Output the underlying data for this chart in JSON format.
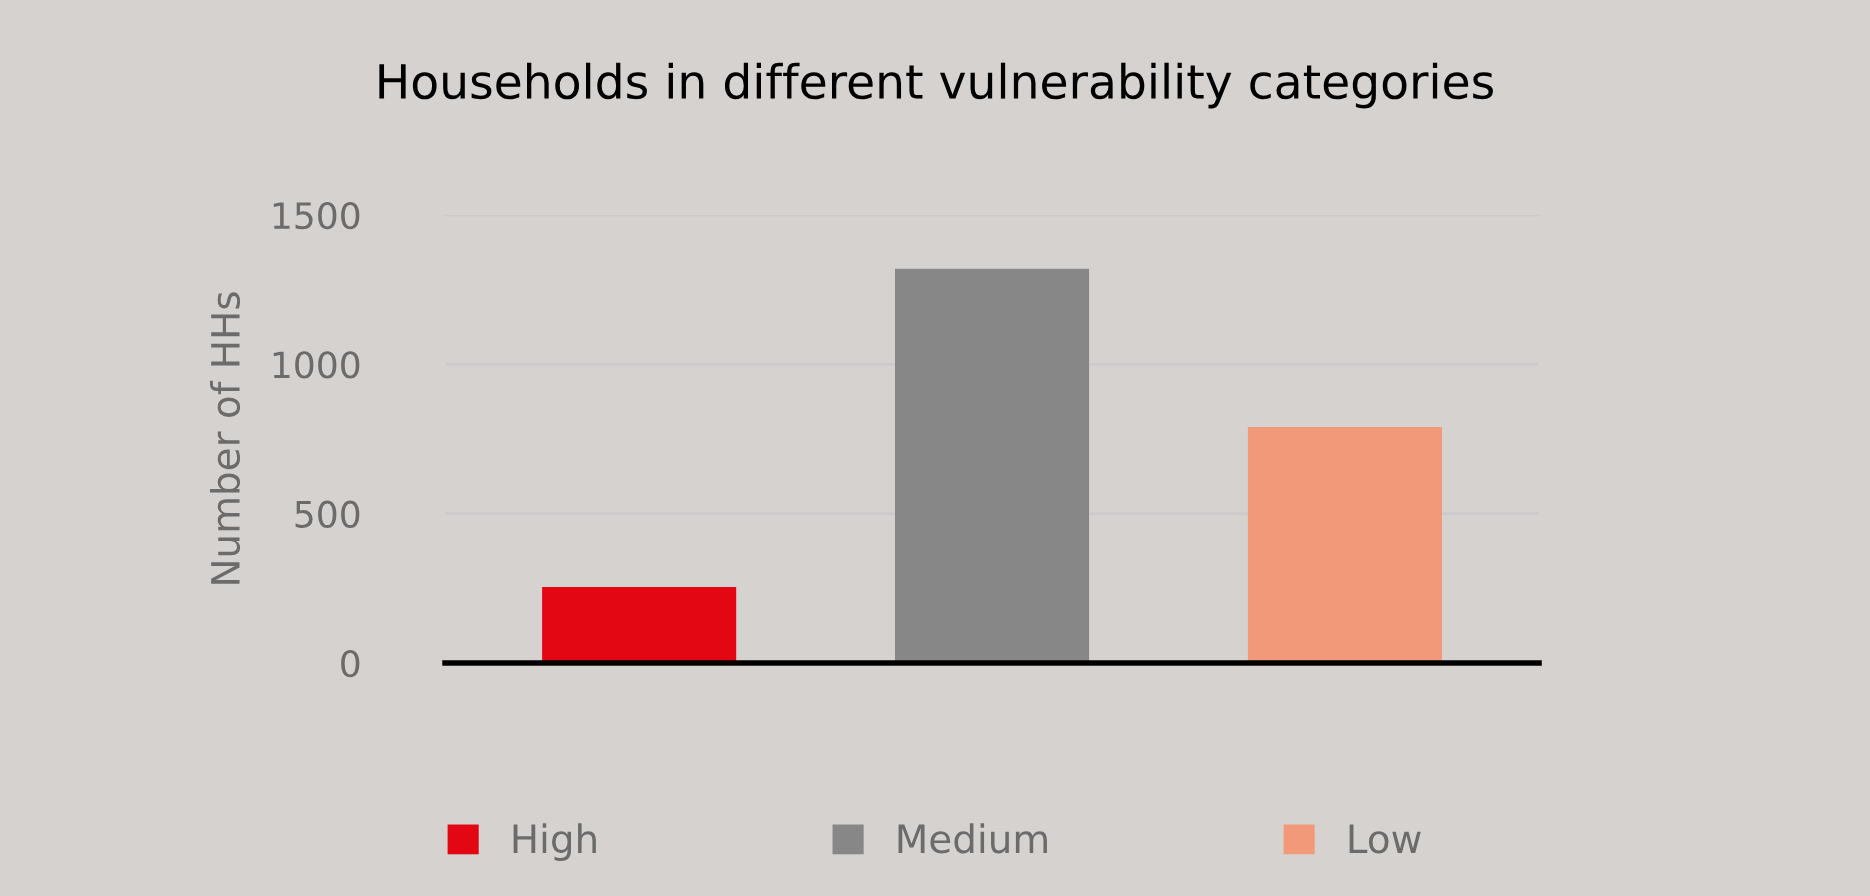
{
  "chart_data": {
    "type": "bar",
    "title": "Households in different vulnerability categories",
    "ylabel": "Number of HHs",
    "categories": [
      null,
      null,
      null
    ],
    "series": [
      {
        "name": "High",
        "color": "#e30613",
        "values": [
          255,
          null,
          null
        ]
      },
      {
        "name": "Medium",
        "color": "#878787",
        "values": [
          null,
          1320,
          null
        ]
      },
      {
        "name": "Low",
        "color": "#f2997a",
        "values": [
          null,
          null,
          790
        ]
      }
    ],
    "ylim": [
      0,
      1500
    ],
    "yticks": [
      0,
      500,
      1000,
      1500
    ],
    "grid": "y",
    "legend": "bottom"
  }
}
